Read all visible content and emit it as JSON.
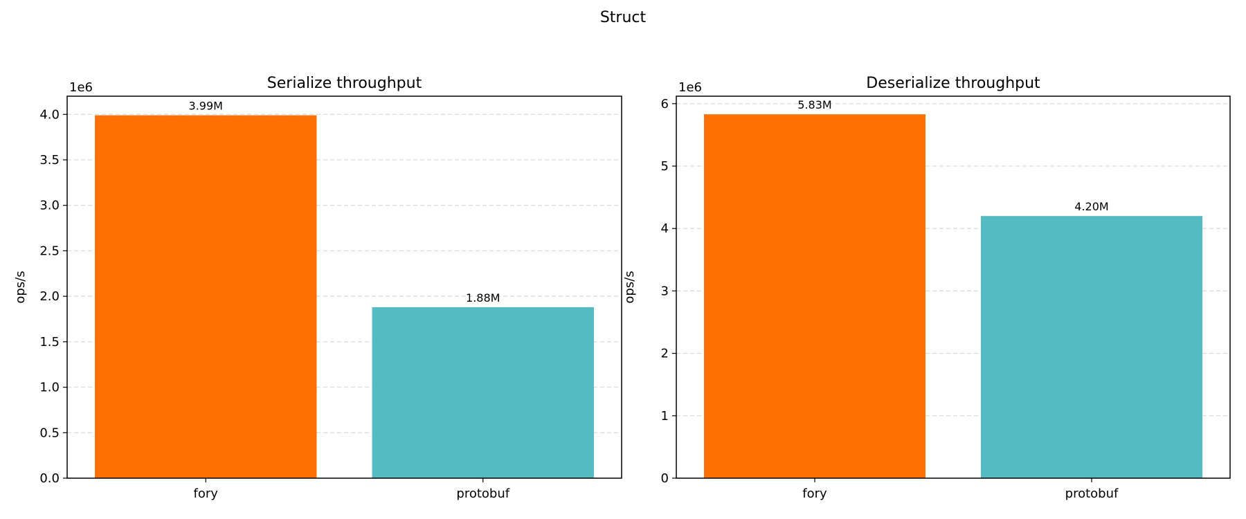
{
  "figure": {
    "suptitle": "Struct"
  },
  "colors": {
    "fory": "#ff7104",
    "protobuf": "#55bbc2",
    "grid": "#d9d9d9",
    "axis": "#000000"
  },
  "chart_data": [
    {
      "type": "bar",
      "title": "Serialize throughput",
      "xlabel": "",
      "ylabel": "ops/s",
      "offset_label": "1e6",
      "categories": [
        "fory",
        "protobuf"
      ],
      "values": [
        3990000,
        1880000
      ],
      "labels": [
        "3.99M",
        "1.88M"
      ],
      "colors": [
        "#ff7104",
        "#55bbc2"
      ],
      "ylim": [
        0,
        4200000
      ],
      "ytick_values": [
        0,
        500000,
        1000000,
        1500000,
        2000000,
        2500000,
        3000000,
        3500000,
        4000000
      ],
      "ytick_labels": [
        "0.0",
        "0.5",
        "1.0",
        "1.5",
        "2.0",
        "2.5",
        "3.0",
        "3.5",
        "4.0"
      ],
      "grid": "y-dashed"
    },
    {
      "type": "bar",
      "title": "Deserialize throughput",
      "xlabel": "",
      "ylabel": "ops/s",
      "offset_label": "1e6",
      "categories": [
        "fory",
        "protobuf"
      ],
      "values": [
        5830000,
        4200000
      ],
      "labels": [
        "5.83M",
        "4.20M"
      ],
      "colors": [
        "#ff7104",
        "#55bbc2"
      ],
      "ylim": [
        0,
        6120000
      ],
      "ytick_values": [
        0,
        1000000,
        2000000,
        3000000,
        4000000,
        5000000,
        6000000
      ],
      "ytick_labels": [
        "0",
        "1",
        "2",
        "3",
        "4",
        "5",
        "6"
      ],
      "grid": "y-dashed"
    }
  ]
}
